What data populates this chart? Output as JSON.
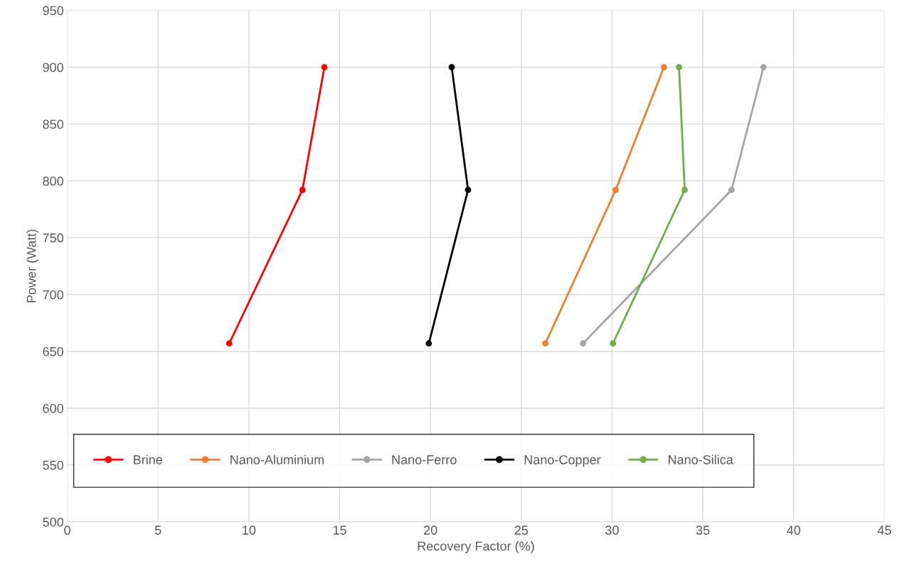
{
  "chart_data": {
    "type": "line",
    "xlabel": "Recovery Factor (%)",
    "ylabel": "Power (Watt)",
    "xlim": [
      0,
      45
    ],
    "xticks": [
      0,
      5,
      10,
      15,
      20,
      25,
      30,
      35,
      40,
      45
    ],
    "ylim": [
      500,
      950
    ],
    "yticks": [
      500,
      550,
      600,
      650,
      700,
      750,
      800,
      850,
      900,
      950
    ],
    "grid": true,
    "legend": "bottom left",
    "marker": "circle",
    "line_style": "solid",
    "series": [
      {
        "name": "Brine",
        "color": "#ff0000",
        "x": [
          14.16,
          12.95,
          8.92
        ],
        "values": [
          900,
          792,
          657
        ]
      },
      {
        "name": "Nano-Aluminium",
        "color": "#ed7d31",
        "x": [
          32.86,
          30.2,
          26.33
        ],
        "values": [
          900,
          792,
          657
        ]
      },
      {
        "name": "Nano-Ferro",
        "color": "#a5a5a5",
        "x": [
          38.34,
          36.58,
          28.4
        ],
        "values": [
          900,
          792,
          657
        ]
      },
      {
        "name": "Nano-Copper",
        "color": "#000000",
        "x": [
          21.17,
          22.07,
          19.91
        ],
        "values": [
          900,
          792,
          657
        ]
      },
      {
        "name": "Nano-Silica",
        "color": "#70ad47",
        "x": [
          33.69,
          34.0,
          30.05
        ],
        "values": [
          900,
          792,
          657
        ]
      }
    ]
  }
}
